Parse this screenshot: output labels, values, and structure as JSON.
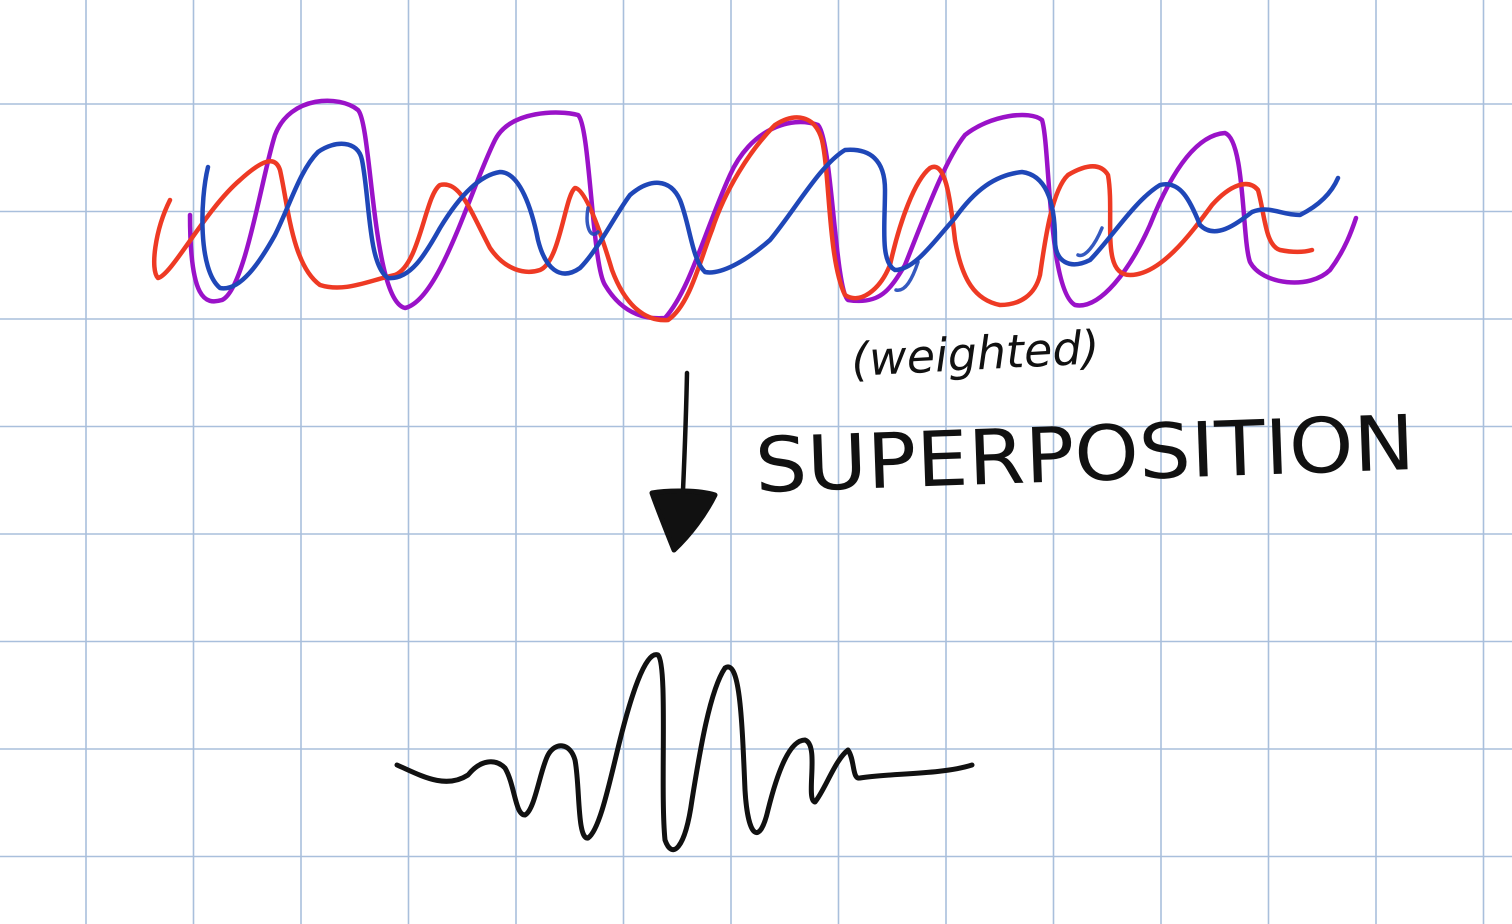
{
  "annotation": {
    "qualifier": "(weighted)",
    "label": "SUPERPOSITION"
  },
  "colors": {
    "paper": "#ffffff",
    "grid": "#a9bfdc",
    "wave_purple": "#9a12c8",
    "wave_red": "#ee3a24",
    "wave_blue": "#1f47b8",
    "ink_black": "#111111"
  },
  "icons": {
    "arrow": "arrow-down-icon"
  }
}
